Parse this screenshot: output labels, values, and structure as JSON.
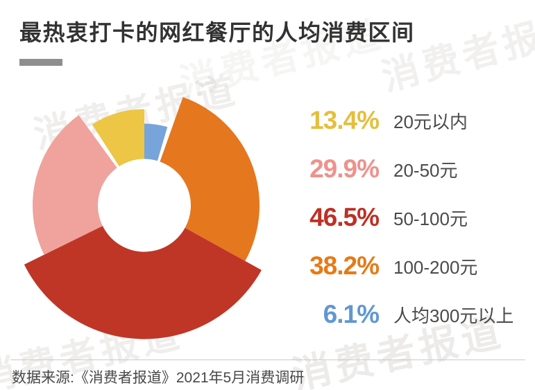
{
  "title": "最热衷打卡的网红餐厅的人均消费区间",
  "watermark": "消费者报道",
  "source": "数据来源:《消费者报道》2021年5月消费调研",
  "chart_data": {
    "type": "donut",
    "title": "最热衷打卡的网红餐厅的人均消费区间",
    "unit": "%",
    "note": "multi-select survey, percentages sum to more than 100",
    "legend_position": "right",
    "items": [
      {
        "label": "20元以内",
        "value": 13.4,
        "percent_text": "13.4%",
        "color": "#ECC644",
        "number_color": "#E6BE3C"
      },
      {
        "label": "20-50元",
        "value": 29.9,
        "percent_text": "29.9%",
        "color": "#F0A29D",
        "number_color": "#EF918B"
      },
      {
        "label": "50-100元",
        "value": 46.5,
        "percent_text": "46.5%",
        "color": "#BF3627",
        "number_color": "#BF3023"
      },
      {
        "label": "100-200元",
        "value": 38.2,
        "percent_text": "38.2%",
        "color": "#E5771E",
        "number_color": "#E67A16"
      },
      {
        "label": "人均300元以上",
        "value": 6.1,
        "percent_text": "6.1%",
        "color": "#76A4DB",
        "number_color": "#6197D3"
      }
    ],
    "slice_order_clockwise_from_top": [
      "人均300元以上",
      "100-200元",
      "50-100元",
      "20-50元",
      "20元以内"
    ]
  }
}
